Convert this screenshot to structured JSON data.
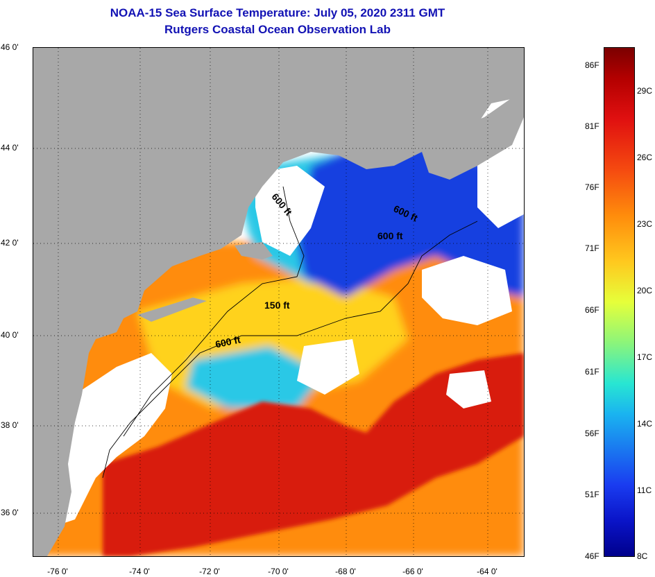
{
  "header": {
    "title": "NOAA-15 Sea Surface Temperature:  July 05, 2020 2311 GMT",
    "subtitle": "Rutgers Coastal Ocean Observation Lab"
  },
  "map": {
    "lat_ticks": [
      "46 0'",
      "44 0'",
      "42 0'",
      "40 0'",
      "38 0'",
      "36 0'"
    ],
    "lon_ticks": [
      "-76 0'",
      "-74 0'",
      "-72 0'",
      "-70 0'",
      "-68 0'",
      "-66 0'",
      "-64 0'"
    ],
    "contour_labels": [
      "600 ft",
      "600 ft",
      "600 ft",
      "150 ft",
      "600 ft"
    ],
    "colors": {
      "land": "#a8a8a8",
      "cloud": "#ffffff",
      "gulf_stream": "#d81a0a",
      "warm": "#ff8c0c",
      "mid": "#ffd21e",
      "cool": "#2ac8e6",
      "cold": "#1440e0"
    }
  },
  "colorbar": {
    "fahrenheit_labels": [
      "86F",
      "81F",
      "76F",
      "71F",
      "66F",
      "61F",
      "56F",
      "51F",
      "46F"
    ],
    "celsius_labels": [
      "29C",
      "26C",
      "23C",
      "20C",
      "17C",
      "14C",
      "11C",
      "8C"
    ]
  }
}
